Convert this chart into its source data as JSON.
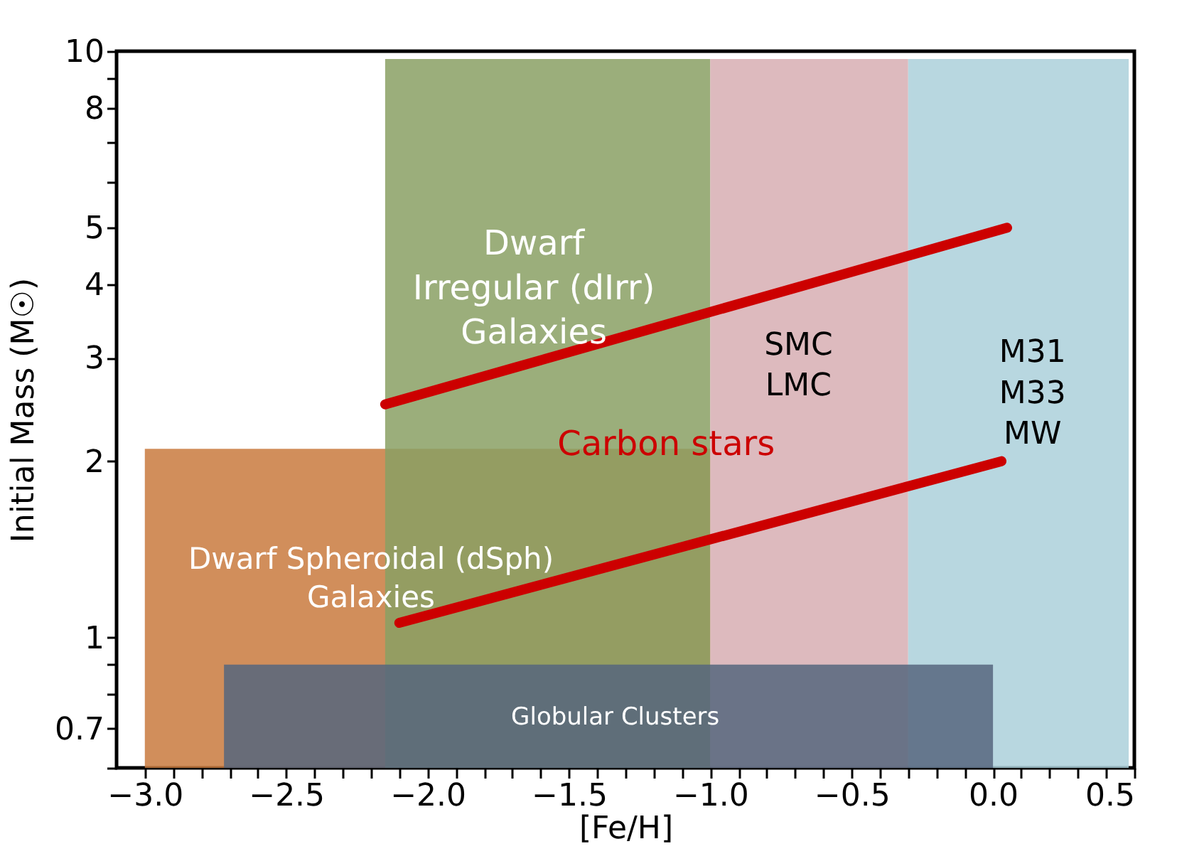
{
  "chart_data": {
    "type": "line",
    "xlabel": "[Fe/H]",
    "ylabel": "Initial Mass (M☉)",
    "xlim": [
      -3.1,
      0.5
    ],
    "xticks": [
      {
        "value": -3.0,
        "label": "−3.0"
      },
      {
        "value": -2.9,
        "label": null
      },
      {
        "value": -2.8,
        "label": null
      },
      {
        "value": -2.7,
        "label": null
      },
      {
        "value": -2.6,
        "label": null
      },
      {
        "value": -2.5,
        "label": "−2.5"
      },
      {
        "value": -2.4,
        "label": null
      },
      {
        "value": -2.3,
        "label": null
      },
      {
        "value": -2.2,
        "label": null
      },
      {
        "value": -2.1,
        "label": null
      },
      {
        "value": -2.0,
        "label": "−2.0"
      },
      {
        "value": -1.9,
        "label": null
      },
      {
        "value": -1.8,
        "label": null
      },
      {
        "value": -1.7,
        "label": null
      },
      {
        "value": -1.6,
        "label": null
      },
      {
        "value": -1.5,
        "label": "−1.5"
      },
      {
        "value": -1.4,
        "label": null
      },
      {
        "value": -1.3,
        "label": null
      },
      {
        "value": -1.2,
        "label": null
      },
      {
        "value": -1.1,
        "label": null
      },
      {
        "value": -1.0,
        "label": "−1.0"
      },
      {
        "value": -0.9,
        "label": null
      },
      {
        "value": -0.8,
        "label": null
      },
      {
        "value": -0.7,
        "label": null
      },
      {
        "value": -0.6,
        "label": null
      },
      {
        "value": -0.5,
        "label": "−0.5"
      },
      {
        "value": -0.4,
        "label": null
      },
      {
        "value": -0.3,
        "label": null
      },
      {
        "value": -0.2,
        "label": null
      },
      {
        "value": -0.1,
        "label": null
      },
      {
        "value": 0.0,
        "label": "0.0"
      },
      {
        "value": 0.1,
        "label": null
      },
      {
        "value": 0.2,
        "label": null
      },
      {
        "value": 0.3,
        "label": null
      },
      {
        "value": 0.4,
        "label": null
      },
      {
        "value": 0.5,
        "label": "0.5"
      }
    ],
    "ylim": [
      0.6,
      10
    ],
    "log": "y",
    "yticks": [
      {
        "value": 0.6,
        "label": null
      },
      0.7,
      {
        "value": 0.8,
        "label": null
      },
      {
        "value": 0.9,
        "label": null
      },
      1,
      2,
      3,
      4,
      5,
      {
        "value": 6,
        "label": null
      },
      {
        "value": 7,
        "label": null
      },
      8,
      {
        "value": 9,
        "label": null
      },
      10
    ],
    "grid": false,
    "series": [
      {
        "type": "area",
        "color": "#c97a3e",
        "x": [
          -3.0,
          -1.0
        ],
        "values": [
          2.1,
          2.1
        ]
      },
      {
        "type": "area",
        "color": "#8aa064",
        "x": [
          -2.15,
          -1.0
        ],
        "values": [
          9.7,
          9.7
        ]
      },
      {
        "type": "area",
        "color": "#d7aeb3",
        "x": [
          -1.0,
          -0.3
        ],
        "values": [
          9.7,
          9.7
        ]
      },
      {
        "type": "area",
        "color": "#abd0db",
        "x": [
          -0.3,
          0.48
        ],
        "values": [
          9.7,
          9.7
        ]
      },
      {
        "type": "area",
        "color": "#56667e",
        "x": [
          -2.72,
          0.0
        ],
        "values": [
          0.9,
          0.9
        ]
      },
      {
        "color": "#cc0000",
        "x": [
          -2.15,
          0.05
        ],
        "values": [
          2.5,
          5.0
        ]
      },
      {
        "color": "#cc0000",
        "x": [
          -2.1,
          0.03
        ],
        "values": [
          1.06,
          2.0
        ]
      }
    ],
    "annotations": [
      "Dwarf\nIrregular (dIrr)\nGalaxies",
      "Dwarf  Spheroidal (dSph)\nGalaxies",
      "SMC\nLMC",
      "M31\nM33\nMW",
      "Carbon stars",
      "Globular Clusters"
    ]
  }
}
